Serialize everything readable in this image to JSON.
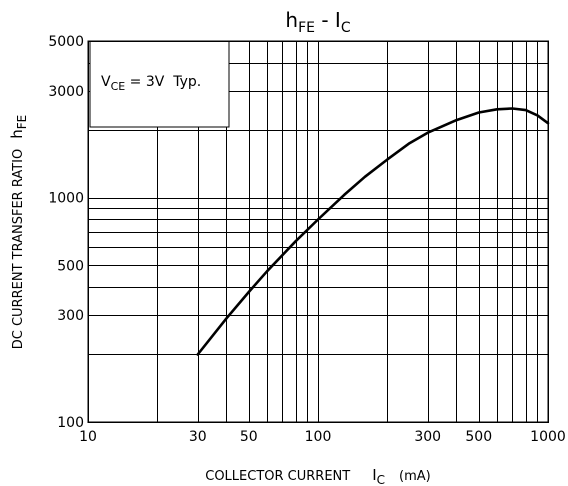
{
  "chart_data": {
    "type": "line",
    "title": {
      "main": "h",
      "main_sub": "FE",
      "sep": " - ",
      "var": "I",
      "var_sub": "C"
    },
    "ylabel": {
      "text": "DC CURRENT TRANSFER RATIO",
      "sym": "h",
      "sym_sub": "FE"
    },
    "xlabel": {
      "text": "COLLECTOR CURRENT",
      "sym": "I",
      "sym_sub": "C",
      "unit": "(mA)"
    },
    "annotation": {
      "v": "V",
      "v_sub": "CE",
      "rest": " = 3V  Typ."
    },
    "x_scale": "log",
    "y_scale": "log",
    "xlim": [
      10,
      1000
    ],
    "ylim": [
      100,
      5000
    ],
    "x_ticks": [
      {
        "value": 10,
        "label": "10"
      },
      {
        "value": 30,
        "label": "30"
      },
      {
        "value": 50,
        "label": "50"
      },
      {
        "value": 100,
        "label": "100"
      },
      {
        "value": 300,
        "label": "300"
      },
      {
        "value": 500,
        "label": "500"
      },
      {
        "value": 1000,
        "label": "1000"
      }
    ],
    "y_ticks": [
      {
        "value": 100,
        "label": "100"
      },
      {
        "value": 300,
        "label": "300"
      },
      {
        "value": 500,
        "label": "500"
      },
      {
        "value": 1000,
        "label": "1000"
      },
      {
        "value": 3000,
        "label": "3000"
      },
      {
        "value": 5000,
        "label": "5000"
      }
    ],
    "grid": true,
    "series": [
      {
        "x": [
          30,
          40,
          50,
          60,
          80,
          100,
          130,
          160,
          200,
          250,
          300,
          400,
          500,
          600,
          700,
          800,
          900,
          1000
        ],
        "y": [
          200,
          290,
          380,
          470,
          640,
          800,
          1030,
          1240,
          1480,
          1750,
          1950,
          2220,
          2400,
          2480,
          2500,
          2460,
          2330,
          2150
        ]
      }
    ]
  }
}
